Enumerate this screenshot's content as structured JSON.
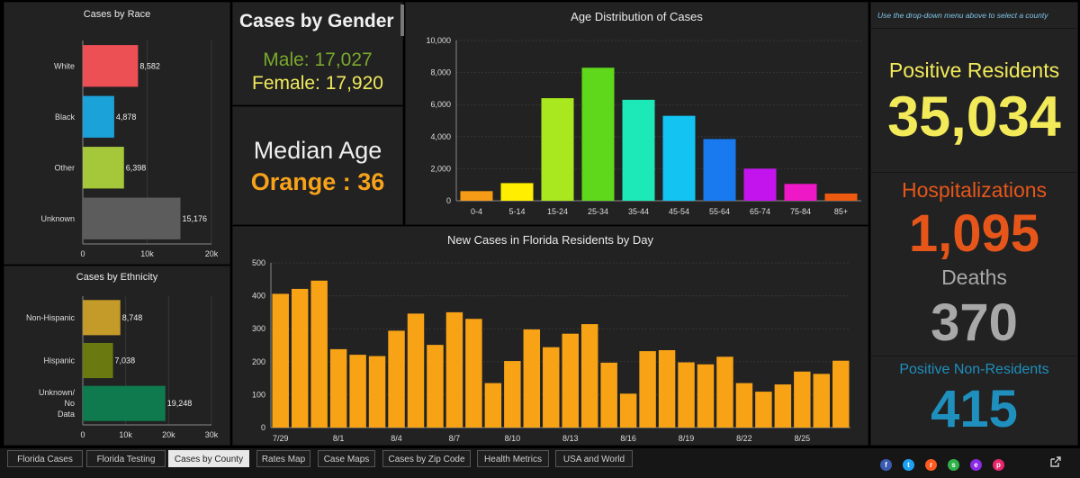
{
  "race": {
    "title": "Cases by Race",
    "chart_data": {
      "type": "bar",
      "orientation": "horizontal",
      "categories": [
        "White",
        "Black",
        "Other",
        "Unknown"
      ],
      "values": [
        8582,
        4878,
        6398,
        15176
      ],
      "value_labels": [
        "8,582",
        "4,878",
        "6,398",
        "15,176"
      ],
      "colors": [
        "#ec4f54",
        "#1ba2d9",
        "#a4c83a",
        "#5c5c5c"
      ],
      "xlim": [
        0,
        20000
      ],
      "xticks": [
        "0",
        "10k",
        "20k"
      ]
    }
  },
  "ethnicity": {
    "title": "Cases by Ethnicity",
    "chart_data": {
      "type": "bar",
      "orientation": "horizontal",
      "categories": [
        "Non-Hispanic",
        "Hispanic",
        "Unknown/ No Data"
      ],
      "values": [
        8748,
        7038,
        19248
      ],
      "value_labels": [
        "8,748",
        "7,038",
        "19,248"
      ],
      "colors": [
        "#c49a28",
        "#6b7a10",
        "#0f7a4d"
      ],
      "xlim": [
        0,
        30000
      ],
      "xticks": [
        "0",
        "10k",
        "20k",
        "30k"
      ]
    }
  },
  "gender": {
    "title": "Cases by Gender",
    "male": "Male: 17,027",
    "female": "Female: 17,920",
    "male_color": "#7aa82c",
    "female_color": "#f0ea5c"
  },
  "median": {
    "label": "Median Age",
    "value": "Orange : 36",
    "value_color": "#f7a21b"
  },
  "age": {
    "title": "Age Distribution of Cases",
    "chart_data": {
      "type": "bar",
      "categories": [
        "0-4",
        "5-14",
        "15-24",
        "25-34",
        "35-44",
        "45-54",
        "55-64",
        "65-74",
        "75-84",
        "85+"
      ],
      "values": [
        600,
        1100,
        6400,
        8300,
        6300,
        5300,
        3850,
        2000,
        1050,
        450
      ],
      "colors": [
        "#f59b15",
        "#ffee00",
        "#a9e81e",
        "#5fd81c",
        "#1ce8b8",
        "#13c3f2",
        "#1979ee",
        "#c414ee",
        "#ee18c6",
        "#ef5a11"
      ],
      "ylim": [
        0,
        10000
      ],
      "yticks": [
        "0",
        "2,000",
        "4,000",
        "6,000",
        "8,000",
        "10,000"
      ]
    }
  },
  "daily": {
    "title": "New Cases in Florida Residents by Day",
    "chart_data": {
      "type": "bar",
      "color": "#f8a316",
      "x": [
        "7/29",
        "7/30",
        "7/31",
        "8/1",
        "8/2",
        "8/3",
        "8/4",
        "8/5",
        "8/6",
        "8/7",
        "8/8",
        "8/9",
        "8/10",
        "8/11",
        "8/12",
        "8/13",
        "8/14",
        "8/15",
        "8/16",
        "8/17",
        "8/18",
        "8/19",
        "8/20",
        "8/21",
        "8/22",
        "8/23",
        "8/24",
        "8/25",
        "8/26",
        "8/27"
      ],
      "values": [
        406,
        421,
        446,
        238,
        221,
        217,
        294,
        346,
        251,
        350,
        330,
        135,
        202,
        298,
        244,
        285,
        314,
        197,
        103,
        232,
        235,
        198,
        192,
        215,
        135,
        109,
        131,
        170,
        163,
        203
      ],
      "xtick_labels": [
        {
          "index": 0,
          "label": "7/29"
        },
        {
          "index": 3,
          "label": "8/1"
        },
        {
          "index": 6,
          "label": "8/4"
        },
        {
          "index": 9,
          "label": "8/7"
        },
        {
          "index": 12,
          "label": "8/10"
        },
        {
          "index": 15,
          "label": "8/13"
        },
        {
          "index": 18,
          "label": "8/16"
        },
        {
          "index": 21,
          "label": "8/19"
        },
        {
          "index": 24,
          "label": "8/22"
        },
        {
          "index": 27,
          "label": "8/25"
        }
      ],
      "ylim": [
        0,
        500
      ],
      "yticks": [
        "0",
        "100",
        "200",
        "300",
        "400",
        "500"
      ]
    }
  },
  "summary": {
    "hint": "Use the drop-down menu above to select a county",
    "positive_label": "Positive Residents",
    "positive_value": "35,034",
    "positive_color": "#f3ea5a",
    "hosp_label": "Hospitalizations",
    "hosp_value": "1,095",
    "hosp_color": "#e6561a",
    "deaths_label": "Deaths",
    "deaths_value": "370",
    "deaths_color": "#a8a8a8",
    "nonres_label": "Positive Non-Residents",
    "nonres_value": "415",
    "nonres_color": "#1f8fbd"
  },
  "tabs": [
    {
      "label": "Florida Cases",
      "active": false
    },
    {
      "label": "Florida Testing",
      "active": false
    },
    {
      "label": "Cases by County",
      "active": true
    },
    {
      "label": "Rates Map",
      "active": false
    },
    {
      "label": "Case Maps",
      "active": false
    },
    {
      "label": "Cases by Zip Code",
      "active": false
    },
    {
      "label": "Health Metrics",
      "active": false
    },
    {
      "label": "USA and World",
      "active": false
    }
  ],
  "social_icons": [
    {
      "icon": "facebook-icon",
      "color": "#3b5bb0",
      "glyph": "f"
    },
    {
      "icon": "twitter-icon",
      "color": "#1da1f2",
      "glyph": "t"
    },
    {
      "icon": "reddit-icon",
      "color": "#ff5a1f",
      "glyph": "r"
    },
    {
      "icon": "sms-icon",
      "color": "#2fb14a",
      "glyph": "s"
    },
    {
      "icon": "email-icon",
      "color": "#8a2be2",
      "glyph": "e"
    },
    {
      "icon": "pinterest-icon",
      "color": "#e8266d",
      "glyph": "p"
    }
  ]
}
